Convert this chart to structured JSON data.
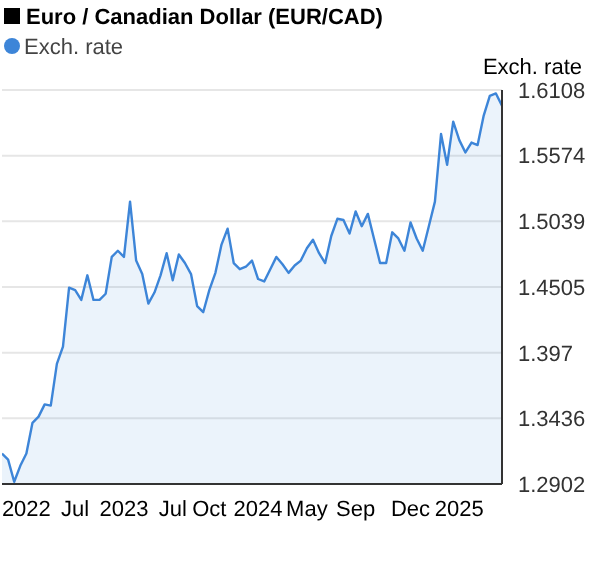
{
  "chart_data": {
    "type": "area",
    "title": "Euro / Canadian Dollar (EUR/CAD)",
    "ylabel": "Exch. rate",
    "legend": "top left",
    "grid": "y",
    "categories": [
      null,
      null,
      null,
      null,
      "2022",
      null,
      null,
      null,
      null,
      null,
      null,
      null,
      "Jul",
      null,
      null,
      null,
      null,
      null,
      null,
      null,
      "2023",
      null,
      null,
      null,
      null,
      null,
      null,
      null,
      "Jul",
      null,
      null,
      null,
      null,
      null,
      "Oct",
      null,
      null,
      null,
      null,
      null,
      null,
      null,
      "2024",
      null,
      null,
      null,
      null,
      null,
      null,
      null,
      "May",
      null,
      null,
      null,
      null,
      null,
      null,
      null,
      "Sep",
      null,
      null,
      null,
      null,
      null,
      null,
      null,
      null,
      "Dec",
      null,
      null,
      null,
      null,
      null,
      null,
      null,
      "2025",
      null,
      null,
      null,
      null,
      null,
      null,
      null
    ],
    "series": [
      {
        "name": "Exch. rate",
        "color": "#3d85d8",
        "values": [
          1.315,
          1.31,
          1.292,
          1.305,
          1.315,
          1.34,
          1.345,
          1.355,
          1.354,
          1.388,
          1.402,
          1.45,
          1.448,
          1.44,
          1.46,
          1.44,
          1.44,
          1.445,
          1.475,
          1.48,
          1.475,
          1.52,
          1.472,
          1.461,
          1.437,
          1.446,
          1.46,
          1.478,
          1.456,
          1.477,
          1.47,
          1.461,
          1.435,
          1.43,
          1.448,
          1.462,
          1.485,
          1.498,
          1.47,
          1.465,
          1.467,
          1.472,
          1.457,
          1.455,
          1.465,
          1.475,
          1.469,
          1.462,
          1.468,
          1.472,
          1.482,
          1.489,
          1.478,
          1.47,
          1.492,
          1.506,
          1.505,
          1.494,
          1.512,
          1.5,
          1.51,
          1.49,
          1.47,
          1.47,
          1.495,
          1.49,
          1.48,
          1.503,
          1.49,
          1.48,
          1.5,
          1.52,
          1.575,
          1.55,
          1.585,
          1.57,
          1.56,
          1.568,
          1.566,
          1.59,
          1.606,
          1.608,
          1.598
        ]
      }
    ],
    "ylim": [
      1.2902,
      1.6108
    ],
    "yticks": [
      1.2902,
      1.3436,
      1.397,
      1.4505,
      1.5039,
      1.5574,
      1.6108
    ]
  }
}
